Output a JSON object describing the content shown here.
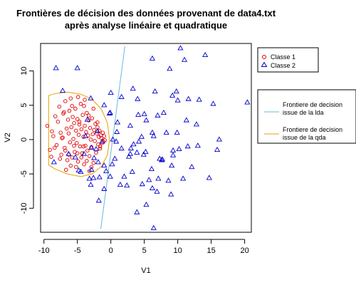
{
  "chart_data": {
    "type": "scatter",
    "title_line1": "Frontières de décision des données provenant de data4.txt",
    "title_line2": "après analyse linéaire et quadratique",
    "xlabel": "V1",
    "ylabel": "V2",
    "xlim": [
      -10.5,
      21
    ],
    "ylim": [
      -13.5,
      14
    ],
    "xticks": [
      -10,
      -5,
      0,
      5,
      10,
      15,
      20
    ],
    "yticks": [
      -10,
      -5,
      0,
      5,
      10
    ],
    "legend_classes": {
      "entries": [
        {
          "label": "Classe 1",
          "color": "#e00000",
          "marker": "circle"
        },
        {
          "label": "Classe 2",
          "color": "#0000cc",
          "marker": "triangle"
        }
      ]
    },
    "legend_boundaries": {
      "entries": [
        {
          "line1": "Frontiere de decision",
          "line2": "issue de la lda",
          "color": "#66b8e0"
        },
        {
          "line1": "Frontiere de decision",
          "line2": "issue de la qda",
          "color": "#e8a000"
        }
      ]
    },
    "colors": {
      "class1": "#e00000",
      "class2": "#0000cc",
      "lda": "#66b8e0",
      "qda": "#e8a000"
    },
    "lda_boundary": [
      [
        -1.5,
        -13
      ],
      [
        2.1,
        13.6
      ]
    ],
    "qda_boundary": [
      [
        -0.2,
        0
      ],
      [
        -0.5,
        2.4
      ],
      [
        -1.4,
        4.4
      ],
      [
        -2.8,
        5.9
      ],
      [
        -4.5,
        6.6
      ],
      [
        -6.5,
        6.9
      ],
      [
        -8.3,
        6.7
      ],
      [
        -9.3,
        6.4
      ],
      [
        -9.3,
        -3.7
      ],
      [
        -8.3,
        -4.3
      ],
      [
        -6.5,
        -5.0
      ],
      [
        -4.5,
        -5.4
      ],
      [
        -2.8,
        -5.0
      ],
      [
        -1.4,
        -3.9
      ],
      [
        -0.5,
        -2.2
      ],
      [
        -0.2,
        0
      ]
    ],
    "series": [
      {
        "name": "Classe 1",
        "x": [
          -9.5,
          -9.1,
          -8.8,
          -8.6,
          -8.3,
          -8.1,
          -7.9,
          -7.7,
          -7.5,
          -7.4,
          -7.2,
          -7.1,
          -6.9,
          -6.8,
          -6.6,
          -6.5,
          -6.4,
          -6.3,
          -6.2,
          -6.1,
          -6.0,
          -5.9,
          -5.8,
          -5.7,
          -5.6,
          -5.5,
          -5.4,
          -5.3,
          -5.2,
          -5.1,
          -5.0,
          -4.9,
          -4.8,
          -4.7,
          -4.6,
          -4.5,
          -4.4,
          -4.3,
          -4.2,
          -4.1,
          -4.0,
          -3.9,
          -3.8,
          -3.7,
          -3.6,
          -3.5,
          -3.4,
          -3.3,
          -3.2,
          -3.1,
          -3.0,
          -2.9,
          -2.8,
          -2.7,
          -2.6,
          -2.5,
          -2.4,
          -2.3,
          -2.2,
          -2.1,
          -2.0,
          -1.9,
          -1.8,
          -1.7,
          -1.6,
          -1.5,
          -1.4,
          -1.3,
          -1.2,
          -1.1,
          -1.0,
          -0.9,
          -7.6,
          -6.8,
          -5.2,
          -4.4,
          -3.2,
          -7.0,
          -5.8,
          -3.9,
          -2.6,
          -6.0,
          -4.9,
          -4.0,
          -3.3,
          -2.0,
          -8.4,
          -6.3,
          -5.5,
          -4.1,
          -2.9,
          -7.3,
          -5.0,
          -3.6,
          -6.7,
          -4.7,
          -1.6,
          -8.9
        ],
        "y": [
          2.0,
          -1.5,
          1.2,
          0.5,
          3.4,
          -0.8,
          2.6,
          4.8,
          1.0,
          -2.2,
          0.3,
          3.8,
          -1.2,
          5.6,
          1.6,
          -3.0,
          2.9,
          0.9,
          4.2,
          -0.4,
          6.0,
          1.8,
          -2.6,
          3.3,
          0.1,
          2.4,
          -1.8,
          4.5,
          1.3,
          -0.5,
          3.0,
          -3.2,
          0.7,
          2.2,
          -1.0,
          5.2,
          1.5,
          -2.0,
          3.6,
          0.4,
          -3.6,
          2.0,
          -0.9,
          1.1,
          3.9,
          -1.6,
          0.6,
          2.8,
          -2.4,
          1.7,
          0.0,
          -1.1,
          3.1,
          0.8,
          -3.4,
          1.4,
          -0.2,
          2.3,
          -1.9,
          0.9,
          1.8,
          -0.7,
          0.4,
          1.3,
          -1.3,
          0.6,
          0.2,
          -0.5,
          1.0,
          -0.3,
          0.5,
          -0.1,
          -2.8,
          -1.6,
          -4.0,
          -2.6,
          -4.6,
          4.0,
          4.9,
          5.8,
          4.5,
          -3.8,
          6.2,
          4.9,
          3.5,
          2.5,
          -1.2,
          -2.2,
          -0.9,
          -1.0,
          -4.0,
          0.2,
          -2.0,
          -3.1,
          -4.4,
          2.6,
          -1.0,
          -2.5
        ]
      },
      {
        "name": "Classe 2",
        "x": [
          6.2,
          10.4,
          14.1,
          11.0,
          8.8,
          -8.2,
          -5.0,
          -7.2,
          0.0,
          3.3,
          6.6,
          9.8,
          11.6,
          4.0,
          1.6,
          -3.0,
          -1.0,
          9.2,
          10.0,
          13.2,
          15.3,
          -0.2,
          7.9,
          4.1,
          -0.1,
          5.0,
          1.0,
          7.0,
          11.3,
          12.8,
          -3.5,
          20.4,
          5.3,
          2.9,
          6.2,
          8.3,
          9.9,
          -2.0,
          0.9,
          6.4,
          4.6,
          16.2,
          15.9,
          0.3,
          -3.8,
          11.5,
          10.2,
          3.4,
          13.0,
          -1.3,
          3.0,
          -8.5,
          -2.2,
          4.9,
          9.3,
          2.7,
          7.7,
          -1.9,
          7.6,
          0.2,
          -0.7,
          14.7,
          10.8,
          7.1,
          2.0,
          5.7,
          -1.7,
          4.7,
          8.6,
          -2.6,
          1.4,
          2.4,
          6.2,
          -3.0,
          -1.0,
          6.9,
          9.0,
          5.3,
          3.9,
          -1.8,
          6.4,
          -4.5,
          -6.3,
          -2.9,
          -5.3,
          0.8,
          -4.0,
          5.2,
          9.1,
          6.1,
          -4.8,
          -1.0,
          3.9,
          0.6,
          9.3,
          -2.9,
          3.2,
          12.1,
          7.3,
          -0.1,
          -2.5,
          1.6,
          2.9,
          -3.2,
          4.2
        ],
        "y": [
          11.8,
          13.3,
          12.3,
          11.6,
          10.3,
          10.4,
          10.4,
          7.1,
          6.8,
          7.4,
          7.0,
          7.0,
          5.9,
          5.9,
          6.2,
          6.0,
          5.0,
          6.4,
          5.7,
          5.8,
          5.2,
          3.8,
          3.9,
          3.6,
          3.9,
          3.7,
          2.5,
          3.5,
          2.8,
          2.2,
          2.9,
          5.4,
          2.8,
          2.0,
          1.0,
          1.0,
          1.0,
          1.2,
          1.1,
          0.5,
          0.4,
          0.0,
          -1.5,
          0.0,
          0.5,
          -1.0,
          -1.4,
          -0.7,
          -0.9,
          -0.3,
          -1.3,
          -3.3,
          -1.4,
          -2.2,
          -2.3,
          -2.5,
          -2.9,
          -3.3,
          -3.0,
          -3.6,
          -4.6,
          -5.6,
          -5.7,
          -5.7,
          -5.4,
          -5.9,
          -5.5,
          -6.5,
          -6.0,
          -5.6,
          -6.6,
          -6.7,
          -7.1,
          -6.6,
          -7.2,
          -7.6,
          -8.0,
          -9.5,
          -10.6,
          -8.9,
          -12.9,
          -4.7,
          -2.1,
          -1.2,
          -2.6,
          -0.3,
          -2.1,
          -1.8,
          -3.8,
          -4.3,
          -4.5,
          -3.8,
          -1.9,
          -2.8,
          -1.6,
          -4.4,
          -4.7,
          -4.0,
          -2.8,
          -5.4,
          -2.7,
          -1.3,
          -2.1,
          -5.7,
          -0.3
        ]
      }
    ]
  }
}
